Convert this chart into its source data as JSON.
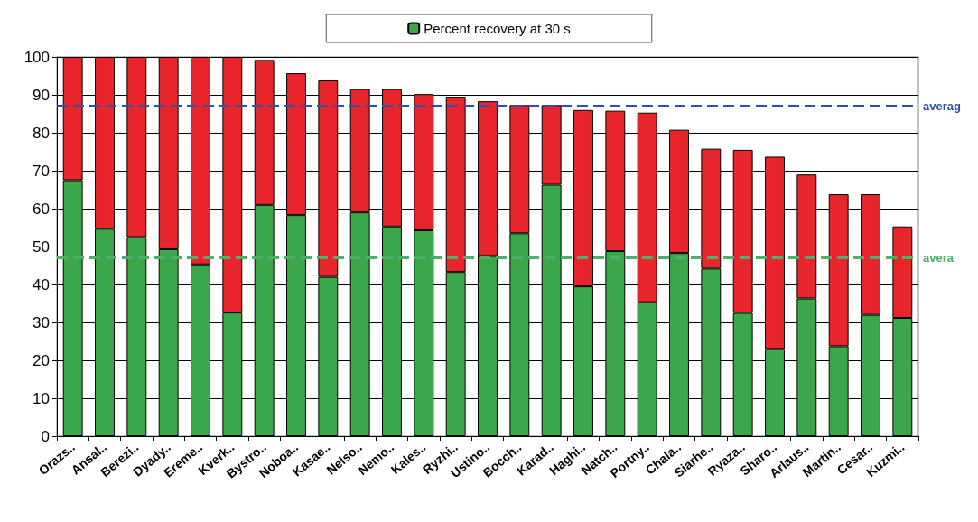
{
  "chart_data": {
    "type": "bar",
    "stacked": true,
    "categories": [
      "Orazs..",
      "Ansal..",
      "Berezi..",
      "Dyady..",
      "Ereme..",
      "Kverk..",
      "Bystro..",
      "Noboa..",
      "Kasae..",
      "Nelso..",
      "Nemo..",
      "Kales..",
      "Ryzhi..",
      "Ustino..",
      "Bocch..",
      "Karad..",
      "Haghi..",
      "Natch..",
      "Portny..",
      "Chala..",
      "Siarhe..",
      "Ryaza..",
      "Sharo..",
      "Arlaus..",
      "Martin..",
      "Cesar..",
      "Kuzmi.."
    ],
    "series": [
      {
        "name": "Percent recovery at 30 s",
        "color": "#3aa84a",
        "values": [
          67.5,
          54.7,
          52.5,
          49.3,
          45.3,
          32.6,
          61,
          58.3,
          42,
          59,
          55.3,
          54.3,
          43.3,
          47.5,
          53.5,
          66.3,
          39.5,
          48.8,
          35.3,
          48.3,
          44.2,
          32.5,
          23,
          36.3,
          23.7,
          32,
          31.2
        ]
      },
      {
        "color": "#e8252b",
        "values": [
          32.5,
          45.3,
          47.5,
          50.7,
          54.7,
          67.4,
          38.2,
          37.4,
          51.8,
          32.5,
          36.2,
          35.9,
          46.2,
          40.8,
          33.8,
          21,
          46.5,
          37,
          50,
          32.5,
          31.6,
          43,
          50.7,
          32.7,
          40.1,
          31.8,
          24.1
        ]
      }
    ],
    "ylim": [
      0,
      100
    ],
    "yticks": [
      0,
      10,
      20,
      30,
      40,
      50,
      60,
      70,
      80,
      90,
      100
    ],
    "grid": "y",
    "legend": "top",
    "ref_lines": [
      {
        "axis": "y",
        "value": 87,
        "label": "averag",
        "color": "#2f4fb0",
        "line_style": "dashed"
      },
      {
        "axis": "y",
        "value": 47,
        "label": "avera",
        "color": "#4caf6a",
        "line_style": "dashed"
      }
    ]
  }
}
